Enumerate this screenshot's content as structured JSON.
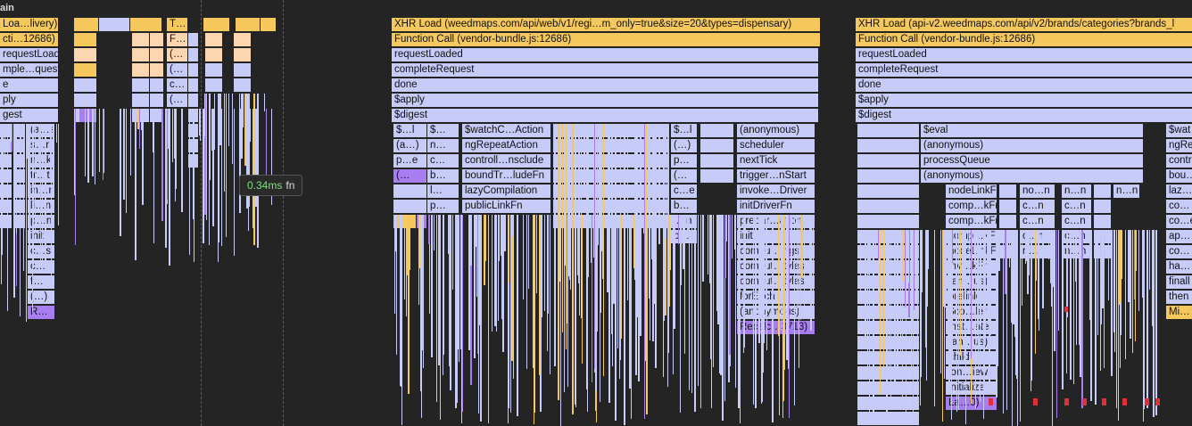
{
  "track": {
    "label": "ain"
  },
  "tooltip": {
    "duration": "0.34ms",
    "name": "fn"
  },
  "colors": {
    "xhr": "#f5c85e",
    "call": "#c7cbf8",
    "yellow": "#f5c85e",
    "peach": "#fbd6b0",
    "purple": "#a77df0",
    "red": "#e0303a"
  },
  "flame_labels": {
    "left_col": [
      "Loa…livery)",
      "cti…12686)",
      "requestLoaded",
      "mple…quest",
      "e",
      "ply",
      "gest"
    ],
    "left_sub": [
      "(a…s)",
      "s…r",
      "n…k",
      "tr…t",
      "in…r",
      "li…n",
      "p…n",
      "init",
      "c…s",
      "c…",
      "f…",
      "(…)",
      "R…"
    ],
    "mid_t": [
      "T…",
      "F…",
      "(…",
      "(…",
      "c…",
      "(…"
    ],
    "main1": {
      "title": "XHR Load (weedmaps.com/api/web/v1/regi…m_only=true&size=20&types=dispensary)",
      "call": "Function Call (vendor-bundle.js:12686)",
      "stack": [
        "requestLoaded",
        "completeRequest",
        "done",
        "$apply",
        "$digest"
      ],
      "col_a": [
        "$…l",
        "(a…)",
        "p…e",
        "(…",
        "",
        "",
        "(…"
      ],
      "col_b": [
        "$…",
        "n…",
        "c…",
        "b…",
        "l…",
        "p…"
      ],
      "col_c": [
        "$watchC…Action",
        "ngRepeatAction",
        "controll…nsclude",
        "boundTr…ludeFn",
        "lazyCompilation",
        "publicLinkFn"
      ],
      "col_d": [
        "$…l",
        "(…)",
        "p…",
        "(…",
        "c…e",
        "b…",
        "l…n",
        "p…"
      ],
      "col_e": [
        "(anonymous)",
        "scheduler",
        "nextTick",
        "trigger…nStart",
        "invoke…Driver",
        "initDriverFn",
        "prepar…ation",
        "init",
        "compu…ings",
        "comput…tyles",
        "comput…tyles",
        "forEach",
        "(anonymous)",
        "Recalc…3713)"
      ]
    },
    "main2": {
      "title": "XHR Load (api-v2.weedmaps.com/api/v2/brands/categories?brands_l",
      "call": "Function Call (vendor-bundle.js:12686)",
      "stack": [
        "requestLoaded",
        "completeRequest",
        "done",
        "$apply",
        "$digest"
      ],
      "col_a": [
        "$eval",
        "(anonymous)",
        "processQueue",
        "(anonymous)"
      ],
      "col_b": [
        "nodeLinkFn",
        "comp…kFn",
        "comp…kFn",
        "comp…kFn",
        "nodeLinkFn",
        "inv…kFn",
        "(an…us)",
        "prelink",
        "$co…ler",
        "inst…ate",
        "(an…us)",
        "child",
        "ion…iew",
        "initialize",
        "La…0)"
      ],
      "col_c": [
        "no…n",
        "c…n",
        "c…n",
        "c…n",
        "n…"
      ],
      "col_d": [
        "n…n",
        "c…n",
        "c…n",
        "c…n",
        "n…n"
      ],
      "col_e": [
        "n…n"
      ],
      "right": [
        "$wat",
        "ngRe",
        "contr",
        "bou…",
        "laz…",
        "co…",
        "co…e",
        "ap…",
        "co…",
        "ha…",
        "finall",
        "then",
        "Mi…"
      ]
    }
  }
}
